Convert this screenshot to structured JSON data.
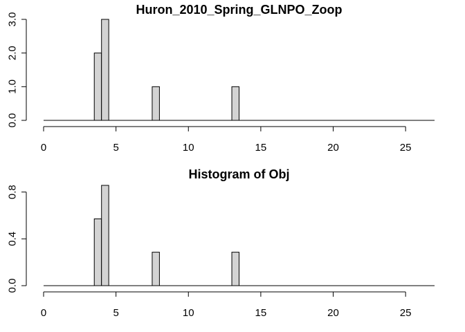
{
  "chart_data": [
    {
      "type": "bar",
      "title": "Huron_2010_Spring_GLNPO_Zoop",
      "xlabel": "",
      "ylabel": "",
      "xlim": [
        0,
        27
      ],
      "ylim": [
        0,
        3.0
      ],
      "x_ticks": [
        0,
        5,
        10,
        15,
        20,
        25
      ],
      "x_tick_labels": [
        "0",
        "5",
        "10",
        "15",
        "20",
        "25"
      ],
      "y_ticks": [
        0,
        1,
        2,
        3
      ],
      "y_tick_labels": [
        "0.0",
        "1.0",
        "2.0",
        "3.0"
      ],
      "bar_width": 0.5,
      "bars": [
        {
          "x_start": 3.5,
          "x_end": 4.0,
          "value": 2
        },
        {
          "x_start": 4.0,
          "x_end": 4.5,
          "value": 3
        },
        {
          "x_start": 7.5,
          "x_end": 8.0,
          "value": 1
        },
        {
          "x_start": 13.0,
          "x_end": 13.5,
          "value": 1
        }
      ],
      "grid": false,
      "bar_color": "#d3d3d3"
    },
    {
      "type": "bar",
      "title": "Histogram of Obj",
      "xlabel": "",
      "ylabel": "",
      "xlim": [
        0,
        27
      ],
      "ylim": [
        0,
        0.857
      ],
      "x_ticks": [
        0,
        5,
        10,
        15,
        20,
        25
      ],
      "x_tick_labels": [
        "0",
        "5",
        "10",
        "15",
        "20",
        "25"
      ],
      "y_ticks": [
        0,
        0.4,
        0.8
      ],
      "y_tick_labels": [
        "0.0",
        "0.4",
        "0.8"
      ],
      "bar_width": 0.5,
      "bars": [
        {
          "x_start": 3.5,
          "x_end": 4.0,
          "value": 0.571
        },
        {
          "x_start": 4.0,
          "x_end": 4.5,
          "value": 0.857
        },
        {
          "x_start": 7.5,
          "x_end": 8.0,
          "value": 0.286
        },
        {
          "x_start": 13.0,
          "x_end": 13.5,
          "value": 0.286
        }
      ],
      "grid": false,
      "bar_color": "#d3d3d3"
    }
  ]
}
